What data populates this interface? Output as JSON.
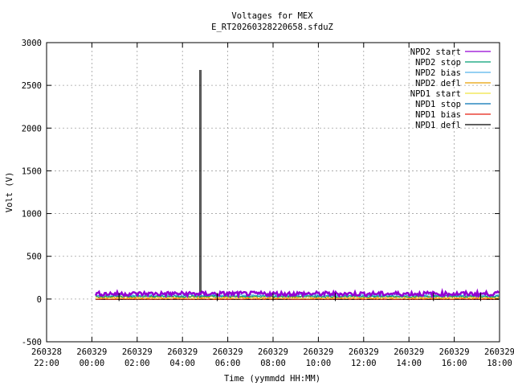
{
  "chart_data": {
    "type": "line",
    "title": "Voltages for MEX",
    "subtitle": "E_RT20260328220658.sfduZ",
    "xlabel": "Time (yymmdd HH:MM)",
    "ylabel": "Volt (V)",
    "xlim": [
      "260328 22:00",
      "260329 18:00"
    ],
    "ylim": [
      -500,
      3000
    ],
    "grid": true,
    "legend_position": "top-right",
    "yticks": [
      "-500",
      "0",
      "500",
      "1000",
      "1500",
      "2000",
      "2500",
      "3000"
    ],
    "xticks": [
      {
        "date": "260328",
        "time": "22:00"
      },
      {
        "date": "260329",
        "time": "00:00"
      },
      {
        "date": "260329",
        "time": "02:00"
      },
      {
        "date": "260329",
        "time": "04:00"
      },
      {
        "date": "260329",
        "time": "06:00"
      },
      {
        "date": "260329",
        "time": "08:00"
      },
      {
        "date": "260329",
        "time": "10:00"
      },
      {
        "date": "260329",
        "time": "12:00"
      },
      {
        "date": "260329",
        "time": "14:00"
      },
      {
        "date": "260329",
        "time": "16:00"
      },
      {
        "date": "260329",
        "time": "18:00"
      }
    ],
    "series": [
      {
        "name": "NPD2 start",
        "color": "#9400d3",
        "baseline": 62,
        "noise": 25
      },
      {
        "name": "NPD2 stop",
        "color": "#009e73",
        "baseline": 30,
        "noise": 10
      },
      {
        "name": "NPD2 bias",
        "color": "#56b4e9",
        "baseline": 45,
        "noise": 10
      },
      {
        "name": "NPD2 defl",
        "color": "#e69f00",
        "baseline": 20,
        "noise": 15
      },
      {
        "name": "NPD1 start",
        "color": "#f0e442",
        "baseline": 10,
        "noise": 5
      },
      {
        "name": "NPD1 stop",
        "color": "#0072b2",
        "baseline": 35,
        "noise": 10
      },
      {
        "name": "NPD1 bias",
        "color": "#e51e10",
        "baseline": 0,
        "noise": 5
      },
      {
        "name": "NPD1 defl",
        "color": "#000000",
        "baseline": -5,
        "noise": 0,
        "spike": {
          "time": "260329 04:48",
          "value": 2680
        }
      }
    ],
    "data_window": {
      "start": "260329 00:10",
      "end": "260329 18:00"
    }
  }
}
